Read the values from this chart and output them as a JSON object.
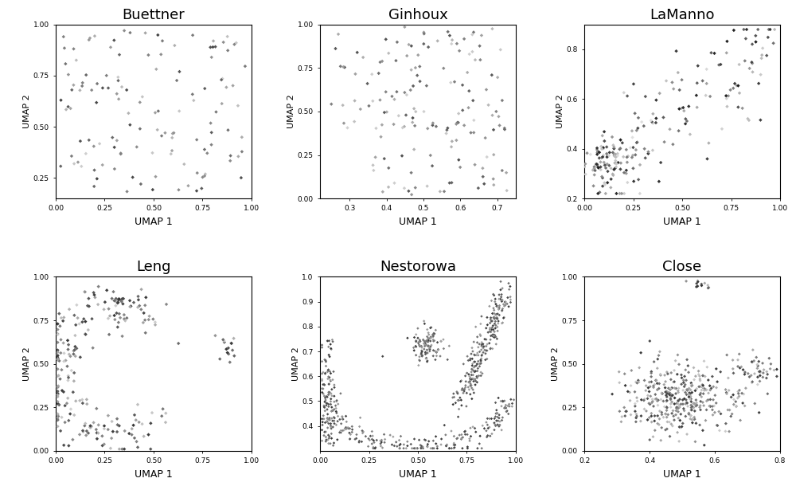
{
  "titles": [
    "Buettner",
    "Ginhoux",
    "LaManno",
    "Leng",
    "Nestorowa",
    "Close"
  ],
  "xlabel": "UMAP 1",
  "ylabel": "UMAP 2",
  "figsize": [
    10.0,
    6.15
  ],
  "dpi": 100,
  "plots": [
    {
      "name": "Buettner",
      "xlim": [
        0.0,
        1.0
      ],
      "ylim": [
        0.15,
        1.0
      ],
      "xticks": [
        0.0,
        0.25,
        0.5,
        0.75,
        1.0
      ],
      "yticks": [
        0.25,
        0.5,
        0.75,
        1.0
      ],
      "xtick_labels": [
        "0.00",
        "0.25",
        "0.50",
        "0.75",
        "1.00"
      ],
      "ytick_labels": [
        "0.25",
        "0.50",
        "0.75",
        "1.00"
      ],
      "n_points": 130,
      "seed": 42,
      "gray_min": 0.25,
      "gray_max": 0.82,
      "marker_size": 5
    },
    {
      "name": "Ginhoux",
      "xlim": [
        0.22,
        0.75
      ],
      "ylim": [
        0.0,
        1.0
      ],
      "xticks": [
        0.3,
        0.4,
        0.5,
        0.6,
        0.7
      ],
      "yticks": [
        0.0,
        0.25,
        0.5,
        0.75,
        1.0
      ],
      "xtick_labels": [
        "0.3",
        "0.4",
        "0.5",
        "0.6",
        "0.7"
      ],
      "ytick_labels": [
        "0.00",
        "0.25",
        "0.50",
        "0.75",
        "1.00"
      ],
      "n_points": 160,
      "seed": 7,
      "gray_min": 0.3,
      "gray_max": 0.82,
      "marker_size": 5
    },
    {
      "name": "LaManno",
      "xlim": [
        0.0,
        1.0
      ],
      "ylim": [
        0.2,
        0.9
      ],
      "xticks": [
        0.0,
        0.25,
        0.5,
        0.75,
        1.0
      ],
      "yticks": [
        0.2,
        0.4,
        0.6,
        0.8
      ],
      "xtick_labels": [
        "0.00",
        "0.25",
        "0.50",
        "0.75",
        "1.00"
      ],
      "ytick_labels": [
        "0.2",
        "0.4",
        "0.6",
        "0.8"
      ],
      "n_points": 220,
      "seed": 13,
      "gray_min": 0.1,
      "gray_max": 0.88,
      "marker_size": 5
    },
    {
      "name": "Leng",
      "xlim": [
        0.0,
        1.0
      ],
      "ylim": [
        0.0,
        1.0
      ],
      "xticks": [
        0.0,
        0.25,
        0.5,
        0.75,
        1.0
      ],
      "yticks": [
        0.0,
        0.25,
        0.5,
        0.75,
        1.0
      ],
      "xtick_labels": [
        "0.00",
        "0.25",
        "0.50",
        "0.75",
        "1.00"
      ],
      "ytick_labels": [
        "0.00",
        "0.25",
        "0.50",
        "0.75",
        "1.00"
      ],
      "n_points": 250,
      "seed": 99,
      "gray_min": 0.2,
      "gray_max": 0.82,
      "marker_size": 5
    },
    {
      "name": "Nestorowa",
      "xlim": [
        0.0,
        1.0
      ],
      "ylim": [
        0.3,
        1.0
      ],
      "xticks": [
        0.0,
        0.25,
        0.5,
        0.75,
        1.0
      ],
      "yticks": [
        0.4,
        0.5,
        0.6,
        0.7,
        0.8,
        0.9,
        1.0
      ],
      "xtick_labels": [
        "0.00",
        "0.25",
        "0.50",
        "0.75",
        "1.00"
      ],
      "ytick_labels": [
        "0.4",
        "0.5",
        "0.6",
        "0.7",
        "0.8",
        "0.9",
        "1.0"
      ],
      "n_points": 700,
      "seed": 55,
      "gray_min": 0.2,
      "gray_max": 0.65,
      "marker_size": 3
    },
    {
      "name": "Close",
      "xlim": [
        0.2,
        0.8
      ],
      "ylim": [
        0.0,
        1.0
      ],
      "xticks": [
        0.2,
        0.4,
        0.6,
        0.8
      ],
      "yticks": [
        0.0,
        0.25,
        0.5,
        0.75,
        1.0
      ],
      "xtick_labels": [
        "0.2",
        "0.4",
        "0.6",
        "0.8"
      ],
      "ytick_labels": [
        "0.00",
        "0.25",
        "0.50",
        "0.75",
        "1.00"
      ],
      "n_points": 450,
      "seed": 77,
      "gray_min": 0.2,
      "gray_max": 0.82,
      "marker_size": 4
    }
  ]
}
